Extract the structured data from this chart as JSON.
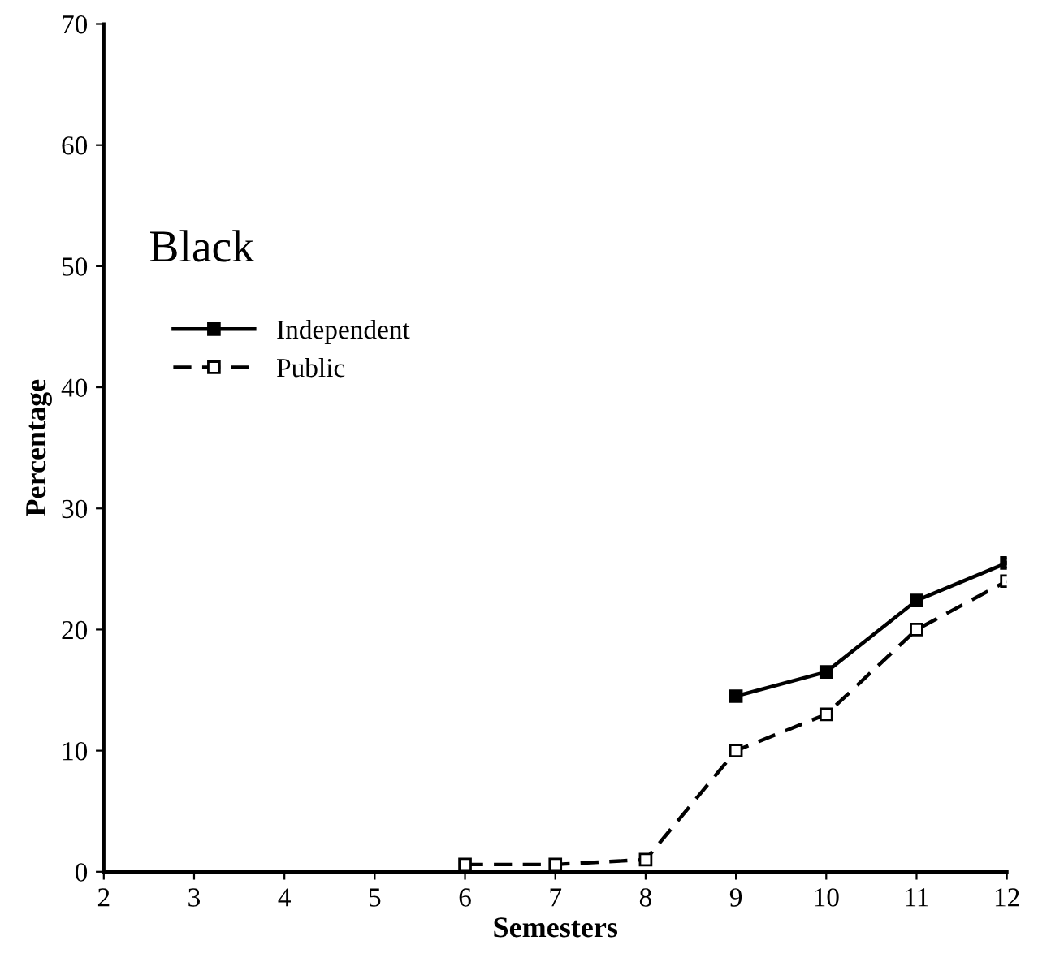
{
  "chart_data": {
    "type": "line",
    "xlabel": "Semesters",
    "ylabel": "Percentage",
    "annotations": [
      "Black"
    ],
    "x": [
      6,
      7,
      8,
      9,
      10,
      11,
      12
    ],
    "series": [
      {
        "name": "Independent",
        "color": "#000000",
        "line_style": "solid",
        "values": [
          null,
          null,
          null,
          14.5,
          16.5,
          22.4,
          25.5
        ]
      },
      {
        "name": "Public",
        "color": "#000000",
        "line_style": "dashed",
        "values": [
          0.6,
          0.6,
          1,
          10,
          13,
          20,
          24
        ]
      }
    ],
    "xlim": [
      2,
      12
    ],
    "ylim": [
      0,
      70
    ],
    "xticks": [
      2,
      3,
      4,
      5,
      6,
      7,
      8,
      9,
      10,
      11,
      12
    ],
    "yticks": [
      0,
      10,
      20,
      30,
      40,
      50,
      60,
      70
    ],
    "marker": "square",
    "legend": "top left",
    "grid": false
  }
}
